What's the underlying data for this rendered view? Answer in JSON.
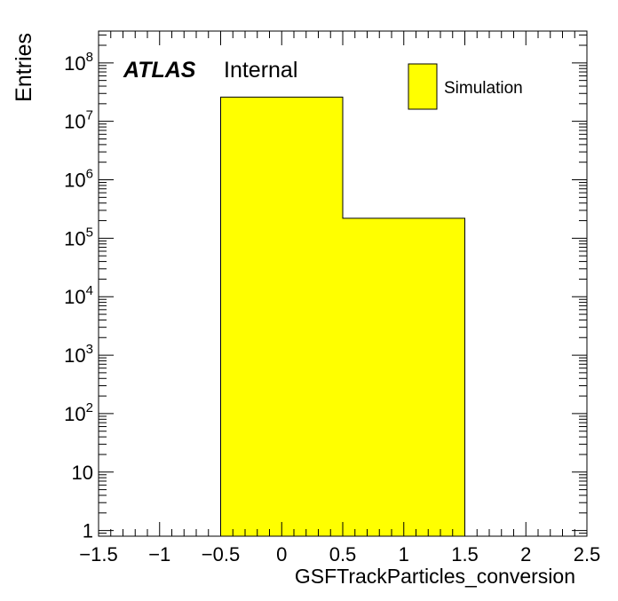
{
  "chart_data": {
    "type": "bar",
    "x_axis": {
      "label": "GSFTrackParticles_conversion",
      "range": [
        -1.5,
        2.5
      ],
      "tick_values": [
        -1.5,
        -1,
        -0.5,
        0,
        0.5,
        1,
        1.5,
        2,
        2.5
      ],
      "tick_labels": [
        "−1.5",
        "−1",
        "−0.5",
        "0",
        "0.5",
        "1",
        "1.5",
        "2",
        "2.5"
      ]
    },
    "y_axis": {
      "label": "Entries",
      "scale": "log",
      "range": [
        0.8,
        350000000
      ],
      "tick_labels": [
        {
          "value": 1,
          "base": "1",
          "exp": ""
        },
        {
          "value": 10,
          "base": "10",
          "exp": ""
        },
        {
          "value": 100,
          "base": "10",
          "exp": "2"
        },
        {
          "value": 1000,
          "base": "10",
          "exp": "3"
        },
        {
          "value": 10000,
          "base": "10",
          "exp": "4"
        },
        {
          "value": 100000,
          "base": "10",
          "exp": "5"
        },
        {
          "value": 1000000,
          "base": "10",
          "exp": "6"
        },
        {
          "value": 10000000,
          "base": "10",
          "exp": "7"
        },
        {
          "value": 100000000,
          "base": "10",
          "exp": "8"
        }
      ]
    },
    "bins": [
      {
        "low": -0.5,
        "high": 0.5,
        "value": 26000000
      },
      {
        "low": 0.5,
        "high": 1.5,
        "value": 220000
      }
    ],
    "series": [
      {
        "name": "Simulation",
        "color": "#ffff00"
      }
    ],
    "legend_position": "top-right",
    "annotation": {
      "bold_text": "ATLAS",
      "text": "Internal"
    },
    "grid": false
  }
}
